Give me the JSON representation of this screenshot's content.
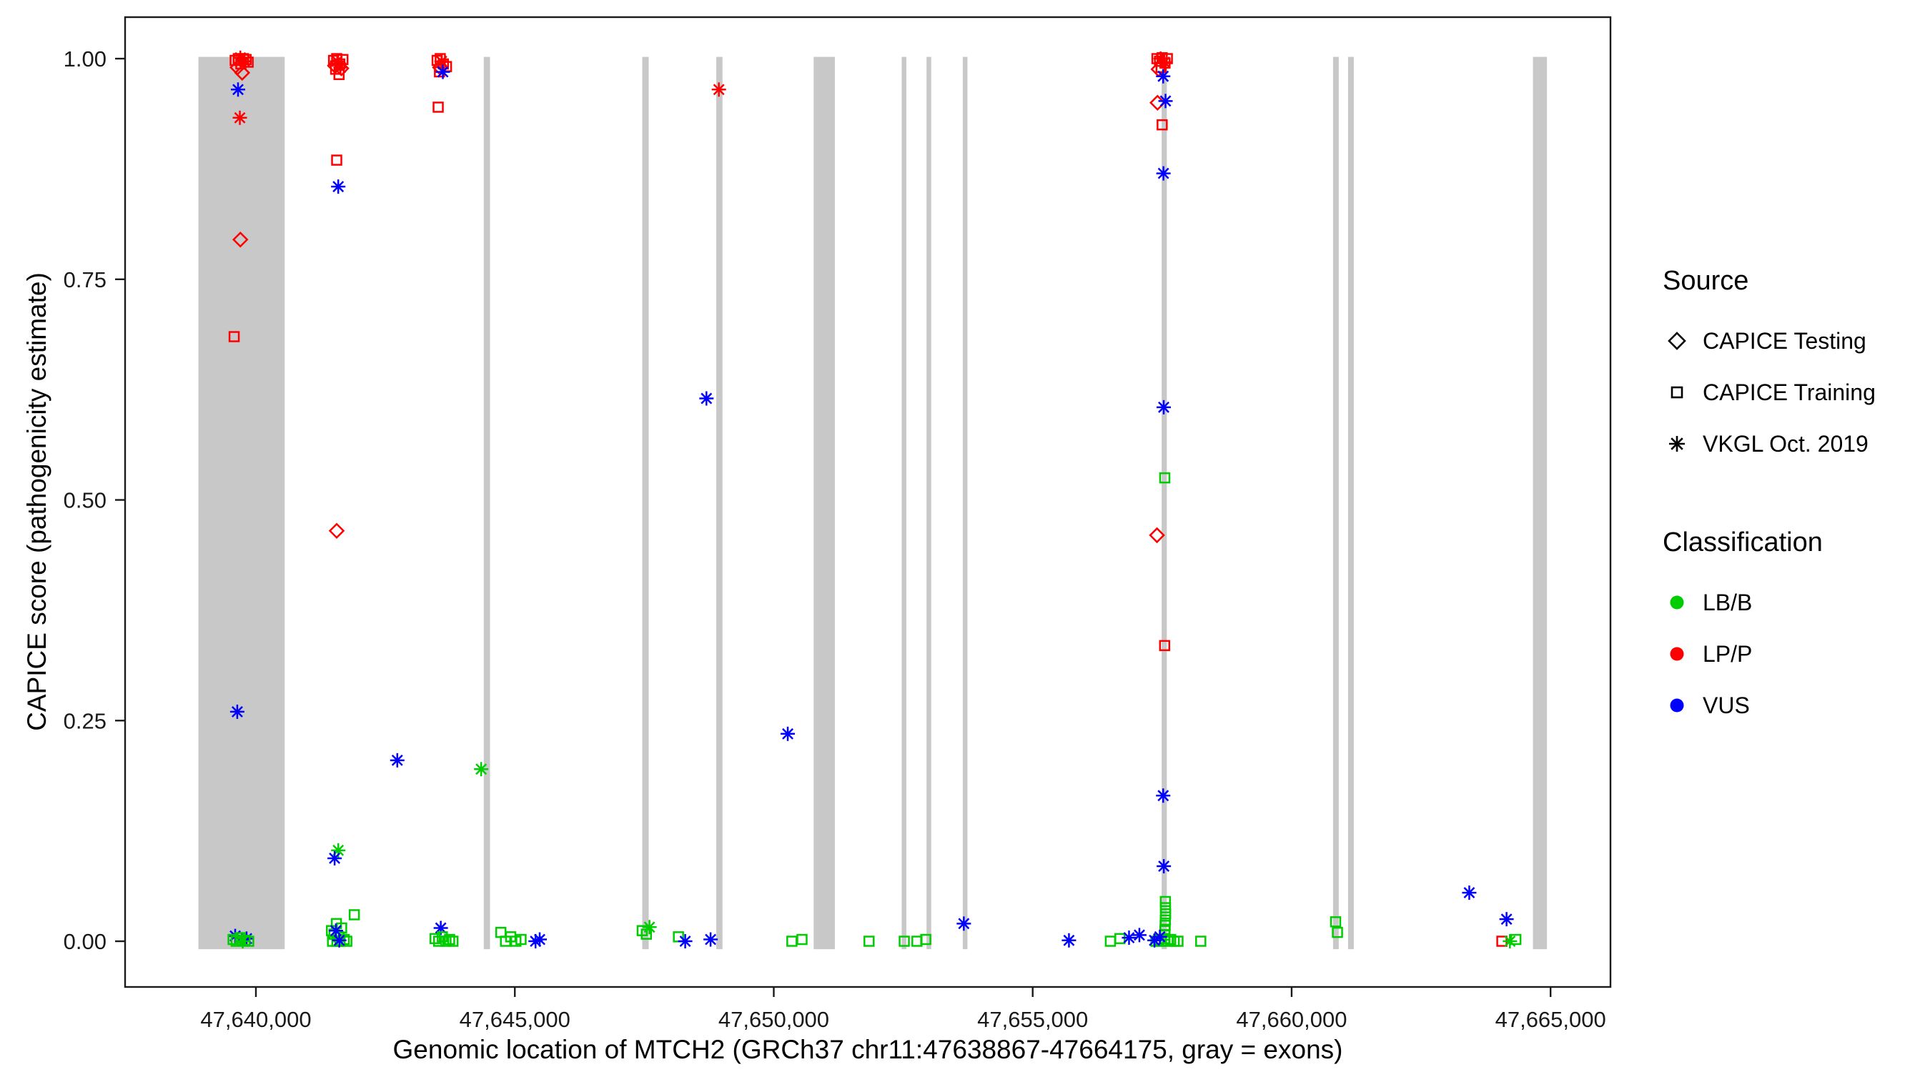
{
  "legend": {
    "source": {
      "title": "Source",
      "items": [
        {
          "label": "CAPICE Testing",
          "symbol": "diamond"
        },
        {
          "label": "CAPICE Training",
          "symbol": "square"
        },
        {
          "label": "VKGL Oct. 2019",
          "symbol": "asterisk"
        }
      ]
    },
    "classification": {
      "title": "Classification",
      "items": [
        {
          "label": "LB/B",
          "color": "#00CD00"
        },
        {
          "label": "LP/P",
          "color": "#FF0000"
        },
        {
          "label": "VUS",
          "color": "#0000FF"
        }
      ]
    }
  },
  "chart_data": {
    "type": "scatter",
    "title": "",
    "xlabel": "Genomic location of MTCH2 (GRCh37 chr11:47638867-47664175, gray = exons)",
    "ylabel": "CAPICE score (pathogenicity estimate)",
    "xlim": [
      47637474,
      47666157
    ],
    "ylim": [
      -0.0518,
      1.047
    ],
    "x_ticks": [
      47640000,
      47645000,
      47650000,
      47655000,
      47660000,
      47665000
    ],
    "x_tick_labels": [
      "47,640,000",
      "47,645,000",
      "47,650,000",
      "47,655,000",
      "47,660,000",
      "47,665,000"
    ],
    "y_ticks": [
      0,
      0.25,
      0.5,
      0.75,
      1.0
    ],
    "y_tick_labels": [
      "0.00",
      "0.25",
      "0.50",
      "0.75",
      "1.00"
    ],
    "grid": "off",
    "legend_position": "right",
    "colors": {
      "LB/B": "#00CD00",
      "LP/P": "#FF0000",
      "VUS": "#0000FF",
      "exon": "#C8C8C8"
    },
    "point_encoding": {
      "format": [
        "genomic_position",
        "capice_score",
        "source_shape",
        "classification_color"
      ],
      "shapes": {
        "d": "CAPICE Testing (diamond)",
        "s": "CAPICE Training (square)",
        "a": "VKGL Oct. 2019 (asterisk)"
      },
      "classes": {
        "g": "LB/B",
        "r": "LP/P",
        "b": "VUS"
      }
    },
    "exon_y": [
      -0.009,
      1.002
    ],
    "exons": [
      [
        47638890,
        47640556
      ],
      [
        47644400,
        47644520
      ],
      [
        47647460,
        47647585
      ],
      [
        47648890,
        47649010
      ],
      [
        47650770,
        47651180
      ],
      [
        47652470,
        47652560
      ],
      [
        47652950,
        47653040
      ],
      [
        47653650,
        47653740
      ],
      [
        47657490,
        47657590
      ],
      [
        47660800,
        47660910
      ],
      [
        47661090,
        47661200
      ],
      [
        47664660,
        47664930
      ]
    ],
    "points": [
      [
        47639600,
        0.998,
        "s",
        "r"
      ],
      [
        47639660,
        1.0,
        "s",
        "r"
      ],
      [
        47639710,
        0.994,
        "s",
        "r"
      ],
      [
        47639760,
        1.0,
        "s",
        "r"
      ],
      [
        47639810,
        0.999,
        "s",
        "r"
      ],
      [
        47639850,
        0.996,
        "s",
        "r"
      ],
      [
        47639700,
        1.001,
        "a",
        "r"
      ],
      [
        47639780,
        0.997,
        "a",
        "r"
      ],
      [
        47639645,
        0.99,
        "d",
        "r"
      ],
      [
        47639735,
        0.984,
        "d",
        "r"
      ],
      [
        47639655,
        0.965,
        "a",
        "b"
      ],
      [
        47639690,
        0.933,
        "a",
        "r"
      ],
      [
        47639700,
        0.795,
        "d",
        "r"
      ],
      [
        47639580,
        0.685,
        "s",
        "r"
      ],
      [
        47639640,
        0.26,
        "a",
        "b"
      ],
      [
        47639600,
        0.006,
        "a",
        "b"
      ],
      [
        47639820,
        0.003,
        "a",
        "b"
      ],
      [
        47639560,
        0.002,
        "s",
        "g"
      ],
      [
        47639620,
        0.0,
        "s",
        "g"
      ],
      [
        47639700,
        0.004,
        "s",
        "g"
      ],
      [
        47639790,
        0.001,
        "s",
        "g"
      ],
      [
        47639860,
        0.0,
        "s",
        "g"
      ],
      [
        47639745,
        0.0,
        "a",
        "g"
      ],
      [
        47641500,
        0.998,
        "s",
        "r"
      ],
      [
        47641560,
        1.0,
        "s",
        "r"
      ],
      [
        47641620,
        0.994,
        "s",
        "r"
      ],
      [
        47641680,
        0.999,
        "s",
        "r"
      ],
      [
        47641540,
        0.988,
        "s",
        "r"
      ],
      [
        47641605,
        0.982,
        "s",
        "r"
      ],
      [
        47641525,
        0.992,
        "d",
        "r"
      ],
      [
        47641650,
        0.989,
        "d",
        "r"
      ],
      [
        47641570,
        0.997,
        "a",
        "r"
      ],
      [
        47641635,
        0.99,
        "a",
        "r"
      ],
      [
        47641560,
        0.885,
        "s",
        "r"
      ],
      [
        47641590,
        0.855,
        "a",
        "b"
      ],
      [
        47641560,
        0.465,
        "d",
        "r"
      ],
      [
        47641590,
        0.103,
        "a",
        "g"
      ],
      [
        47641520,
        0.094,
        "a",
        "b"
      ],
      [
        47641460,
        0.012,
        "s",
        "g"
      ],
      [
        47641510,
        0.008,
        "s",
        "g"
      ],
      [
        47641555,
        0.02,
        "s",
        "g"
      ],
      [
        47641605,
        0.005,
        "s",
        "g"
      ],
      [
        47641655,
        0.015,
        "s",
        "g"
      ],
      [
        47641705,
        0.002,
        "s",
        "g"
      ],
      [
        47641755,
        0.0,
        "s",
        "g"
      ],
      [
        47641900,
        0.03,
        "s",
        "g"
      ],
      [
        47641480,
        0.0,
        "s",
        "g"
      ],
      [
        47641565,
        0.0,
        "s",
        "g"
      ],
      [
        47641625,
        0.0,
        "s",
        "g"
      ],
      [
        47641545,
        0.012,
        "a",
        "b"
      ],
      [
        47641610,
        0.001,
        "a",
        "b"
      ],
      [
        47643500,
        0.998,
        "s",
        "r"
      ],
      [
        47643560,
        1.0,
        "s",
        "r"
      ],
      [
        47643620,
        0.994,
        "s",
        "r"
      ],
      [
        47643680,
        0.991,
        "s",
        "r"
      ],
      [
        47643545,
        0.985,
        "s",
        "r"
      ],
      [
        47643585,
        0.997,
        "a",
        "r"
      ],
      [
        47643555,
        0.99,
        "d",
        "r"
      ],
      [
        47643610,
        0.985,
        "a",
        "b"
      ],
      [
        47643520,
        0.945,
        "s",
        "r"
      ],
      [
        47643570,
        0.015,
        "a",
        "b"
      ],
      [
        47643460,
        0.003,
        "s",
        "g"
      ],
      [
        47643530,
        0.0,
        "s",
        "g"
      ],
      [
        47643600,
        0.005,
        "s",
        "g"
      ],
      [
        47643670,
        0.0,
        "s",
        "g"
      ],
      [
        47643740,
        0.002,
        "s",
        "g"
      ],
      [
        47643805,
        0.0,
        "s",
        "g"
      ],
      [
        47642730,
        0.205,
        "a",
        "b"
      ],
      [
        47644350,
        0.195,
        "a",
        "g"
      ],
      [
        47644730,
        0.01,
        "s",
        "g"
      ],
      [
        47644820,
        0.0,
        "s",
        "g"
      ],
      [
        47644920,
        0.005,
        "s",
        "g"
      ],
      [
        47645020,
        0.0,
        "s",
        "g"
      ],
      [
        47645120,
        0.002,
        "s",
        "g"
      ],
      [
        47645400,
        0.0,
        "a",
        "b"
      ],
      [
        47645480,
        0.002,
        "a",
        "b"
      ],
      [
        47647460,
        0.012,
        "s",
        "g"
      ],
      [
        47647540,
        0.008,
        "s",
        "g"
      ],
      [
        47647600,
        0.016,
        "a",
        "g"
      ],
      [
        47648160,
        0.005,
        "s",
        "g"
      ],
      [
        47648290,
        0.0,
        "a",
        "b"
      ],
      [
        47648700,
        0.615,
        "a",
        "b"
      ],
      [
        47648780,
        0.002,
        "a",
        "b"
      ],
      [
        47648940,
        0.965,
        "a",
        "r"
      ],
      [
        47650270,
        0.235,
        "a",
        "b"
      ],
      [
        47650350,
        0.0,
        "s",
        "g"
      ],
      [
        47650545,
        0.002,
        "s",
        "g"
      ],
      [
        47651840,
        0.0,
        "s",
        "g"
      ],
      [
        47652520,
        0.0,
        "s",
        "g"
      ],
      [
        47652765,
        0.0,
        "s",
        "g"
      ],
      [
        47652935,
        0.002,
        "s",
        "g"
      ],
      [
        47653670,
        0.02,
        "a",
        "b"
      ],
      [
        47655700,
        0.001,
        "a",
        "b"
      ],
      [
        47656500,
        0.0,
        "s",
        "g"
      ],
      [
        47656685,
        0.003,
        "s",
        "g"
      ],
      [
        47656860,
        0.004,
        "a",
        "b"
      ],
      [
        47657060,
        0.007,
        "a",
        "b"
      ],
      [
        47657400,
        1.0,
        "s",
        "r"
      ],
      [
        47657450,
        0.997,
        "s",
        "r"
      ],
      [
        47657500,
        1.001,
        "s",
        "r"
      ],
      [
        47657555,
        0.995,
        "s",
        "r"
      ],
      [
        47657600,
        1.0,
        "s",
        "r"
      ],
      [
        47657480,
        0.99,
        "s",
        "r"
      ],
      [
        47657470,
        1.0,
        "a",
        "r"
      ],
      [
        47657545,
        0.996,
        "a",
        "r"
      ],
      [
        47657430,
        0.988,
        "d",
        "r"
      ],
      [
        47657520,
        0.98,
        "a",
        "b"
      ],
      [
        47657410,
        0.95,
        "d",
        "r"
      ],
      [
        47657565,
        0.952,
        "a",
        "b"
      ],
      [
        47657500,
        0.925,
        "s",
        "r"
      ],
      [
        47657525,
        0.87,
        "a",
        "b"
      ],
      [
        47657530,
        0.605,
        "a",
        "b"
      ],
      [
        47657550,
        0.525,
        "s",
        "g"
      ],
      [
        47657400,
        0.46,
        "d",
        "r"
      ],
      [
        47657548,
        0.335,
        "s",
        "r"
      ],
      [
        47657520,
        0.165,
        "a",
        "b"
      ],
      [
        47657532,
        0.085,
        "a",
        "b"
      ],
      [
        47657562,
        0.045,
        "s",
        "g"
      ],
      [
        47657564,
        0.038,
        "s",
        "g"
      ],
      [
        47657566,
        0.031,
        "s",
        "g"
      ],
      [
        47657562,
        0.024,
        "s",
        "g"
      ],
      [
        47657558,
        0.018,
        "s",
        "g"
      ],
      [
        47657554,
        0.012,
        "s",
        "g"
      ],
      [
        47657550,
        0.007,
        "s",
        "g"
      ],
      [
        47657546,
        0.003,
        "s",
        "g"
      ],
      [
        47657380,
        0.0,
        "s",
        "g"
      ],
      [
        47657432,
        0.002,
        "s",
        "g"
      ],
      [
        47657484,
        0.0,
        "s",
        "g"
      ],
      [
        47657612,
        0.0,
        "s",
        "g"
      ],
      [
        47657664,
        0.002,
        "s",
        "g"
      ],
      [
        47657732,
        0.0,
        "s",
        "g"
      ],
      [
        47657805,
        0.0,
        "s",
        "g"
      ],
      [
        47657455,
        0.005,
        "a",
        "b"
      ],
      [
        47657352,
        0.001,
        "a",
        "b"
      ],
      [
        47658245,
        0.0,
        "s",
        "g"
      ],
      [
        47660850,
        0.022,
        "s",
        "g"
      ],
      [
        47660885,
        0.01,
        "s",
        "g"
      ],
      [
        47663430,
        0.055,
        "a",
        "b"
      ],
      [
        47664150,
        0.025,
        "a",
        "b"
      ],
      [
        47664060,
        0.0,
        "s",
        "r"
      ],
      [
        47664215,
        0.0,
        "a",
        "g"
      ],
      [
        47664330,
        0.002,
        "s",
        "g"
      ]
    ]
  }
}
